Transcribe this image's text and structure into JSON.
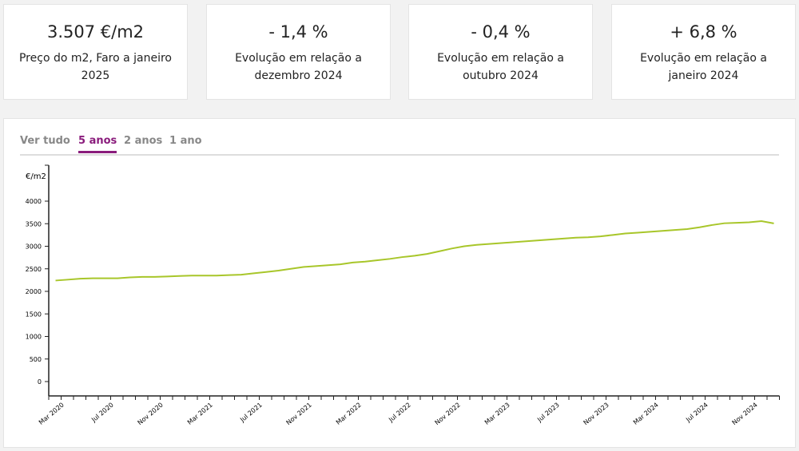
{
  "cards": [
    {
      "value": "3.507 €/m2",
      "label": "Preço do m2, Faro a janeiro 2025"
    },
    {
      "value": "- 1,4 %",
      "label": "Evolução em relação a dezembro 2024"
    },
    {
      "value": "- 0,4 %",
      "label": "Evolução em relação a outubro 2024"
    },
    {
      "value": "+ 6,8 %",
      "label": "Evolução em relação a janeiro 2024"
    }
  ],
  "tabs": [
    {
      "label": "Ver tudo"
    },
    {
      "label": "5 anos",
      "active": true
    },
    {
      "label": "2 anos"
    },
    {
      "label": "1 ano"
    }
  ],
  "colors": {
    "line": "#a8c62a",
    "accent": "#8a1c7c"
  },
  "chart_data": {
    "type": "line",
    "ylabel": "€/m2",
    "ylim": [
      0,
      4200
    ],
    "yticks": [
      0,
      500,
      1000,
      1500,
      2000,
      2500,
      3000,
      3500,
      4000
    ],
    "xticks": [
      "Mar 2020",
      "Jul 2020",
      "Nov 2020",
      "Mar 2021",
      "Jul 2021",
      "Nov 2021",
      "Mar 2022",
      "Jul 2022",
      "Nov 2022",
      "Mar 2023",
      "Jul 2023",
      "Nov 2023",
      "Mar 2024",
      "Jul 2024",
      "Nov 2024"
    ],
    "x_start": "Mar 2020",
    "x_end": "Jan 2025",
    "values": [
      2240,
      2260,
      2280,
      2290,
      2290,
      2290,
      2310,
      2320,
      2320,
      2330,
      2340,
      2350,
      2350,
      2350,
      2360,
      2370,
      2400,
      2430,
      2460,
      2500,
      2540,
      2560,
      2580,
      2600,
      2640,
      2660,
      2690,
      2720,
      2760,
      2790,
      2830,
      2890,
      2950,
      3000,
      3030,
      3050,
      3070,
      3090,
      3110,
      3130,
      3150,
      3170,
      3190,
      3200,
      3220,
      3250,
      3284,
      3300,
      3320,
      3340,
      3360,
      3380,
      3420,
      3470,
      3510,
      3521,
      3530,
      3557,
      3507
    ]
  }
}
